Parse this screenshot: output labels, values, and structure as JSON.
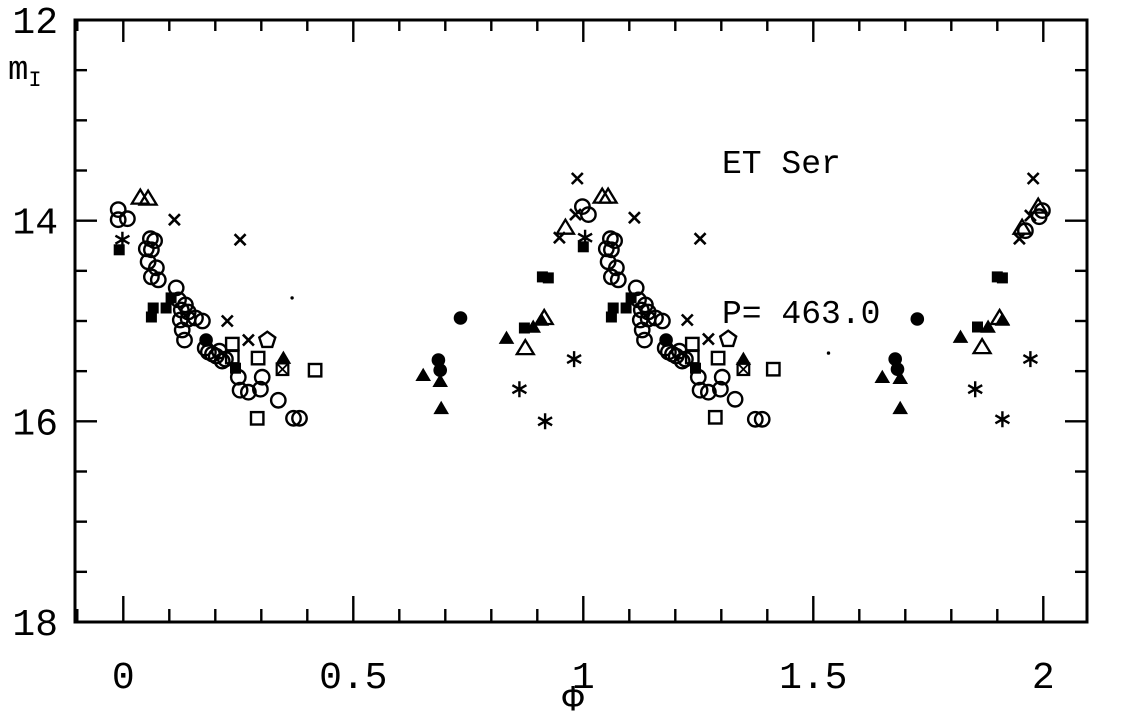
{
  "labels": {
    "star_name": "ET Ser",
    "period": "P= 463.0",
    "x_axis": "Φ",
    "y_axis_main": "m",
    "y_axis_sub": "I"
  },
  "colors": {
    "ink": "#000000",
    "paper": "#ffffff"
  },
  "chart_data": {
    "type": "scatter",
    "title": "ET Ser",
    "subtitle": "P= 463.0",
    "xlabel": "Φ",
    "ylabel": "m_I",
    "xlim": [
      -0.105,
      2.095
    ],
    "ylim": [
      12,
      18
    ],
    "y_inverted_magnitude_axis": true,
    "grid": false,
    "legend": "none",
    "axes": {
      "x": {
        "major_ticks": [
          {
            "value": 0,
            "label": "0"
          },
          {
            "value": 0.5,
            "label": "0.5"
          },
          {
            "value": 1,
            "label": "1"
          },
          {
            "value": 1.5,
            "label": "1.5"
          },
          {
            "value": 2,
            "label": "2"
          }
        ],
        "minor_step": 0.1
      },
      "y": {
        "major_ticks": [
          {
            "value": 12,
            "label": "12"
          },
          {
            "value": 14,
            "label": "14"
          },
          {
            "value": 16,
            "label": "16"
          },
          {
            "value": 18,
            "label": "18"
          }
        ],
        "minor_step": 0.5
      }
    },
    "series": [
      {
        "name": "open-circle",
        "symbol": "open-circle",
        "points": [
          [
            -0.011,
            13.89
          ],
          [
            -0.011,
            13.99
          ],
          [
            0.009,
            13.98
          ],
          [
            0.05,
            14.28
          ],
          [
            0.054,
            14.41
          ],
          [
            0.059,
            14.18
          ],
          [
            0.061,
            14.29
          ],
          [
            0.061,
            14.56
          ],
          [
            0.068,
            14.2
          ],
          [
            0.072,
            14.47
          ],
          [
            0.076,
            14.59
          ],
          [
            0.115,
            14.67
          ],
          [
            0.12,
            14.79
          ],
          [
            0.124,
            14.99
          ],
          [
            0.126,
            14.89
          ],
          [
            0.128,
            15.09
          ],
          [
            0.133,
            15.19
          ],
          [
            0.135,
            14.84
          ],
          [
            0.141,
            14.91
          ],
          [
            0.141,
            14.98
          ],
          [
            0.157,
            14.97
          ],
          [
            0.172,
            15.0
          ],
          [
            0.178,
            15.27
          ],
          [
            0.185,
            15.31
          ],
          [
            0.194,
            15.33
          ],
          [
            0.202,
            15.35
          ],
          [
            0.209,
            15.3
          ],
          [
            0.215,
            15.4
          ],
          [
            0.222,
            15.38
          ],
          [
            0.25,
            15.56
          ],
          [
            0.254,
            15.69
          ],
          [
            0.272,
            15.71
          ],
          [
            0.298,
            15.68
          ],
          [
            0.302,
            15.56
          ],
          [
            0.337,
            15.79
          ],
          [
            0.37,
            15.97
          ],
          [
            0.383,
            15.97
          ],
          [
            0.998,
            13.86
          ],
          [
            1.011,
            13.94
          ],
          [
            1.05,
            14.28
          ],
          [
            1.054,
            14.41
          ],
          [
            1.059,
            14.18
          ],
          [
            1.061,
            14.29
          ],
          [
            1.061,
            14.56
          ],
          [
            1.068,
            14.2
          ],
          [
            1.072,
            14.47
          ],
          [
            1.076,
            14.59
          ],
          [
            1.115,
            14.67
          ],
          [
            1.12,
            14.79
          ],
          [
            1.124,
            14.99
          ],
          [
            1.126,
            14.89
          ],
          [
            1.128,
            15.09
          ],
          [
            1.133,
            15.19
          ],
          [
            1.135,
            14.84
          ],
          [
            1.141,
            14.91
          ],
          [
            1.141,
            14.98
          ],
          [
            1.157,
            14.97
          ],
          [
            1.172,
            15.0
          ],
          [
            1.178,
            15.27
          ],
          [
            1.185,
            15.31
          ],
          [
            1.194,
            15.33
          ],
          [
            1.202,
            15.35
          ],
          [
            1.209,
            15.3
          ],
          [
            1.215,
            15.4
          ],
          [
            1.222,
            15.38
          ],
          [
            1.25,
            15.56
          ],
          [
            1.254,
            15.69
          ],
          [
            1.272,
            15.71
          ],
          [
            1.298,
            15.68
          ],
          [
            1.302,
            15.56
          ],
          [
            1.33,
            15.78
          ],
          [
            1.374,
            15.98
          ],
          [
            1.389,
            15.98
          ],
          [
            1.961,
            14.1
          ],
          [
            1.991,
            13.96
          ],
          [
            1.998,
            13.9
          ]
        ]
      },
      {
        "name": "filled-circle",
        "symbol": "filled-circle",
        "points": [
          [
            0.18,
            15.19
          ],
          [
            0.685,
            15.39
          ],
          [
            0.689,
            15.49
          ],
          [
            0.733,
            14.97
          ],
          [
            1.18,
            15.19
          ],
          [
            1.678,
            15.38
          ],
          [
            1.683,
            15.48
          ],
          [
            1.726,
            14.98
          ]
        ]
      },
      {
        "name": "open-square",
        "symbol": "open-square",
        "points": [
          [
            0.237,
            15.23
          ],
          [
            0.237,
            15.36
          ],
          [
            0.293,
            15.37
          ],
          [
            0.291,
            15.97
          ],
          [
            0.417,
            15.49
          ],
          [
            1.237,
            15.23
          ],
          [
            1.237,
            15.36
          ],
          [
            1.293,
            15.37
          ],
          [
            1.287,
            15.96
          ],
          [
            1.413,
            15.48
          ]
        ]
      },
      {
        "name": "filled-square",
        "symbol": "filled-square",
        "points": [
          [
            -0.009,
            14.29
          ],
          [
            0.061,
            14.96
          ],
          [
            0.065,
            14.87
          ],
          [
            0.093,
            14.87
          ],
          [
            0.104,
            14.77
          ],
          [
            0.244,
            15.47
          ],
          [
            0.872,
            15.07
          ],
          [
            0.911,
            14.56
          ],
          [
            0.924,
            14.57
          ],
          [
            1.0,
            14.26
          ],
          [
            1.061,
            14.96
          ],
          [
            1.065,
            14.87
          ],
          [
            1.093,
            14.87
          ],
          [
            1.104,
            14.77
          ],
          [
            1.244,
            15.47
          ],
          [
            1.857,
            15.06
          ],
          [
            1.9,
            14.56
          ],
          [
            1.911,
            14.57
          ]
        ]
      },
      {
        "name": "open-triangle",
        "symbol": "open-triangle",
        "points": [
          [
            0.037,
            13.77
          ],
          [
            0.054,
            13.78
          ],
          [
            0.874,
            15.27
          ],
          [
            0.915,
            14.97
          ],
          [
            0.961,
            14.07
          ],
          [
            1.041,
            13.76
          ],
          [
            1.054,
            13.76
          ],
          [
            1.867,
            15.26
          ],
          [
            1.905,
            14.97
          ],
          [
            1.954,
            14.07
          ],
          [
            1.989,
            13.86
          ]
        ]
      },
      {
        "name": "filled-triangle",
        "symbol": "filled-triangle",
        "points": [
          [
            0.348,
            15.37
          ],
          [
            0.652,
            15.54
          ],
          [
            0.689,
            15.6
          ],
          [
            0.691,
            15.87
          ],
          [
            0.833,
            15.17
          ],
          [
            0.891,
            15.06
          ],
          [
            0.909,
            14.99
          ],
          [
            1.348,
            15.38
          ],
          [
            1.65,
            15.56
          ],
          [
            1.689,
            15.57
          ],
          [
            1.689,
            15.87
          ],
          [
            1.82,
            15.16
          ],
          [
            1.88,
            15.06
          ],
          [
            1.911,
            14.99
          ]
        ]
      },
      {
        "name": "cross",
        "symbol": "cross",
        "points": [
          [
            0.111,
            13.99
          ],
          [
            0.226,
            15.0
          ],
          [
            0.254,
            14.19
          ],
          [
            0.272,
            15.19
          ],
          [
            0.948,
            14.17
          ],
          [
            0.983,
            13.94
          ],
          [
            0.987,
            13.58
          ],
          [
            1.111,
            13.97
          ],
          [
            1.226,
            14.99
          ],
          [
            1.254,
            14.18
          ],
          [
            1.272,
            15.18
          ],
          [
            1.948,
            14.18
          ],
          [
            1.972,
            13.95
          ],
          [
            1.978,
            13.58
          ]
        ]
      },
      {
        "name": "asterisk",
        "symbol": "asterisk",
        "points": [
          [
            -0.002,
            14.19
          ],
          [
            0.861,
            15.68
          ],
          [
            0.917,
            16.0
          ],
          [
            0.98,
            15.38
          ],
          [
            1.004,
            14.17
          ],
          [
            1.852,
            15.68
          ],
          [
            1.911,
            15.98
          ],
          [
            1.972,
            15.38
          ]
        ]
      },
      {
        "name": "open-pentagon",
        "symbol": "open-pentagon",
        "points": [
          [
            0.313,
            15.19
          ],
          [
            1.315,
            15.18
          ]
        ]
      },
      {
        "name": "crossed-square",
        "symbol": "crossed-square",
        "points": [
          [
            0.346,
            15.48
          ],
          [
            1.348,
            15.48
          ]
        ]
      },
      {
        "name": "speck-dot",
        "symbol": "dot",
        "points": [
          [
            0.367,
            14.77
          ],
          [
            1.533,
            15.32
          ]
        ]
      }
    ]
  }
}
